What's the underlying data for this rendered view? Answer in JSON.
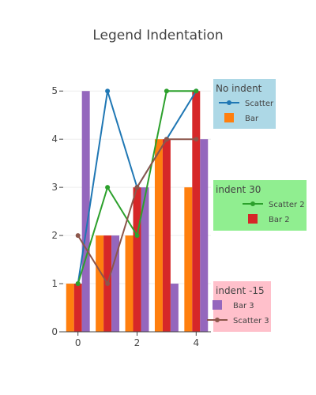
{
  "chart_data": {
    "type": "bar",
    "title": "Legend Indentation",
    "xlabel": "",
    "ylabel": "",
    "x_ticks": [
      0,
      2,
      4
    ],
    "y_ticks": [
      0,
      1,
      2,
      3,
      4,
      5
    ],
    "xlim": [
      -0.5,
      4.5
    ],
    "ylim": [
      0,
      5.25
    ],
    "grid": true,
    "bar_series": [
      {
        "name": "Bar",
        "color": "#ff7f0e",
        "x": [
          0,
          1,
          2,
          3,
          4
        ],
        "values": [
          1,
          2,
          2,
          4,
          3
        ]
      },
      {
        "name": "Bar 2",
        "color": "#d62728",
        "x": [
          0,
          1,
          2,
          3,
          4
        ],
        "values": [
          1,
          2,
          3,
          4,
          5
        ]
      },
      {
        "name": "Bar 3",
        "color": "#9467bd",
        "x": [
          0,
          1,
          2,
          3,
          4
        ],
        "values": [
          5,
          2,
          3,
          1,
          4
        ]
      }
    ],
    "line_series": [
      {
        "name": "Scatter",
        "color": "#1f77b4",
        "x": [
          0,
          1,
          2,
          3,
          4
        ],
        "values": [
          1,
          5,
          3,
          4,
          5
        ]
      },
      {
        "name": "Scatter 2",
        "color": "#2ca02c",
        "x": [
          0,
          1,
          2,
          3,
          4
        ],
        "values": [
          1,
          3,
          2,
          5,
          5
        ]
      },
      {
        "name": "Scatter 3",
        "color": "#8c564b",
        "x": [
          0,
          1,
          2,
          3,
          4
        ],
        "values": [
          2,
          1,
          3,
          4,
          4
        ]
      }
    ],
    "legends": [
      {
        "title": "No indent",
        "background": "#add8e6",
        "placement": "top-right",
        "items": [
          "Scatter",
          "Bar"
        ]
      },
      {
        "title": "indent 30",
        "background": "#90ee90",
        "placement": "middle-right",
        "items": [
          "Scatter 2",
          "Bar 2"
        ]
      },
      {
        "title": "indent -15",
        "background": "#ffc0cb",
        "placement": "bottom-right",
        "items": [
          "Bar 3",
          "Scatter 3"
        ]
      }
    ]
  }
}
